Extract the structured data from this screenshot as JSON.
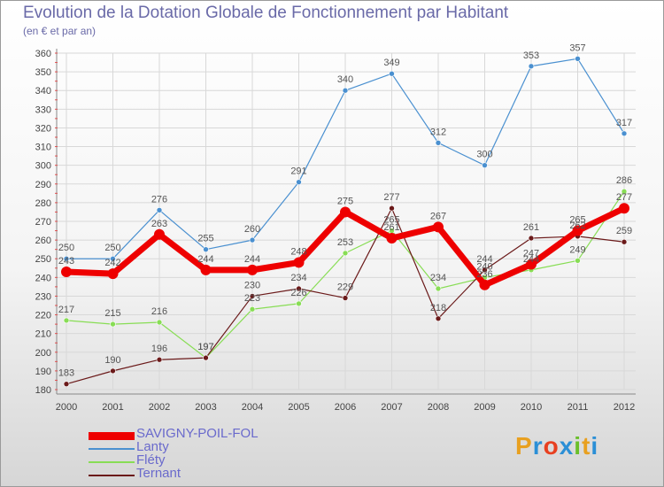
{
  "title": "Evolution de la Dotation Globale de Fonctionnement par Habitant",
  "subtitle": "(en € et par an)",
  "logo": {
    "text": "Proxiti",
    "letters": [
      "P",
      "r",
      "o",
      "x",
      "i",
      "t",
      "i"
    ],
    "colors": [
      "#e8a020",
      "#2b8fd6",
      "#e84020",
      "#2b8fd6",
      "#6abf2a",
      "#e8a020",
      "#2b8fd6"
    ]
  },
  "chart_data": {
    "type": "line",
    "title": "Evolution de la Dotation Globale de Fonctionnement par Habitant",
    "subtitle": "(en € et par an)",
    "x": [
      "2000",
      "2001",
      "2002",
      "2003",
      "2004",
      "2005",
      "2006",
      "2007",
      "2008",
      "2009",
      "2010",
      "2011",
      "2012"
    ],
    "ylim": [
      180,
      360
    ],
    "yticks": [
      180,
      190,
      200,
      210,
      220,
      230,
      240,
      250,
      260,
      270,
      280,
      290,
      300,
      310,
      320,
      330,
      340,
      350,
      360
    ],
    "grid": true,
    "legend_position": "bottom-left",
    "series": [
      {
        "name": "SAVIGNY-POIL-FOL",
        "color": "#ee0000",
        "values": [
          243,
          242,
          263,
          244,
          244,
          248,
          275,
          261,
          267,
          236,
          247,
          265,
          277
        ]
      },
      {
        "name": "Lanty",
        "color": "#4a90d0",
        "values": [
          250,
          250,
          276,
          255,
          260,
          291,
          340,
          349,
          312,
          300,
          353,
          357,
          317
        ]
      },
      {
        "name": "Fléty",
        "color": "#88dd55",
        "values": [
          217,
          215,
          216,
          197,
          223,
          226,
          253,
          265,
          234,
          240,
          244,
          249,
          286
        ]
      },
      {
        "name": "Ternant",
        "color": "#6b1a1a",
        "values": [
          183,
          190,
          196,
          197,
          230,
          234,
          229,
          277,
          218,
          244,
          261,
          262,
          259
        ]
      }
    ],
    "labels": [
      [
        243,
        242,
        263,
        244,
        244,
        248,
        275,
        261,
        267,
        236,
        247,
        265,
        277
      ],
      [
        250,
        250,
        276,
        255,
        260,
        291,
        340,
        349,
        312,
        300,
        353,
        357,
        317
      ],
      [
        217,
        215,
        216,
        197,
        223,
        226,
        253,
        265,
        234,
        240,
        244,
        249,
        286
      ],
      [
        183,
        190,
        196,
        197,
        230,
        234,
        229,
        277,
        218,
        244,
        261,
        262,
        259
      ]
    ]
  }
}
